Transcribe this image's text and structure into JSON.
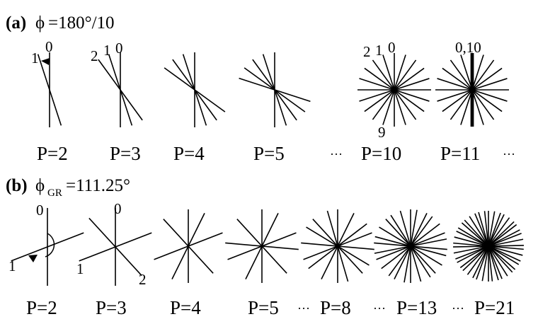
{
  "panel_a": {
    "label": "(a)",
    "phi_symbol": "ϕ",
    "phi_value": "=180°/10",
    "angle_degrees": 18,
    "diagrams": [
      {
        "p_label": "P=2",
        "count": 2,
        "annotations": [
          "1",
          "0"
        ]
      },
      {
        "p_label": "P=3",
        "count": 3,
        "annotations": [
          "2",
          "1",
          "0"
        ]
      },
      {
        "p_label": "P=4",
        "count": 4,
        "annotations": []
      },
      {
        "p_label": "P=5",
        "count": 5,
        "annotations": []
      },
      {
        "p_label": "P=10",
        "count": 10,
        "annotations": [
          "2",
          "1",
          "0",
          "9"
        ]
      },
      {
        "p_label": "P=11",
        "count": 11,
        "annotations": [
          "0,10"
        ]
      }
    ],
    "ellipsis_after": [
      "P=5",
      "P=11"
    ],
    "ellipsis": "···"
  },
  "panel_b": {
    "label": "(b)",
    "phi_symbol": "ϕ",
    "phi_subscript": "GR",
    "phi_value": "=111.25°",
    "angle_degrees": 111.25,
    "diagrams": [
      {
        "p_label": "P=2",
        "count": 2,
        "annotations": [
          "0",
          "1"
        ]
      },
      {
        "p_label": "P=3",
        "count": 3,
        "annotations": [
          "0",
          "1",
          "2"
        ]
      },
      {
        "p_label": "P=4",
        "count": 4,
        "annotations": []
      },
      {
        "p_label": "P=5",
        "count": 5,
        "annotations": []
      },
      {
        "p_label": "P=8",
        "count": 8,
        "annotations": []
      },
      {
        "p_label": "P=13",
        "count": 13,
        "annotations": []
      },
      {
        "p_label": "P=21",
        "count": 21,
        "annotations": []
      }
    ],
    "ellipsis_after": [
      "P=5",
      "P=8",
      "P=13"
    ],
    "ellipsis": "···"
  }
}
